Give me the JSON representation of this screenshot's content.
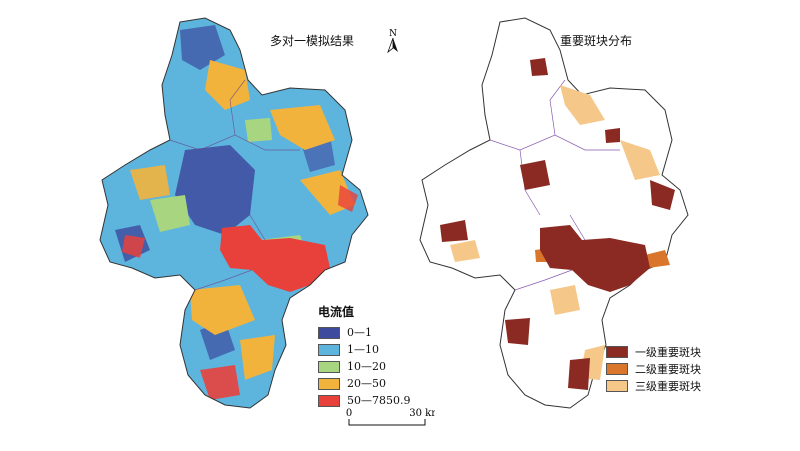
{
  "left_map": {
    "title": "多对一模拟结果"
  },
  "right_map": {
    "title": "重要斑块分布"
  },
  "north_arrow": {
    "label": "N"
  },
  "current_legend": {
    "title": "电流值",
    "items": [
      {
        "label": "0—1",
        "color": "#3d4a9e"
      },
      {
        "label": "1—10",
        "color": "#5db5dd"
      },
      {
        "label": "10—20",
        "color": "#a8d57f"
      },
      {
        "label": "20—50",
        "color": "#f2b33c"
      },
      {
        "label": "50—7850.9",
        "color": "#e8413c"
      }
    ]
  },
  "patch_legend": {
    "items": [
      {
        "label": "一级重要斑块",
        "color": "#8b2a22"
      },
      {
        "label": "二级重要斑块",
        "color": "#d9762b"
      },
      {
        "label": "三级重要斑块",
        "color": "#f5c88a"
      }
    ]
  },
  "scale_bar": {
    "start": "0",
    "end": "30 km"
  }
}
